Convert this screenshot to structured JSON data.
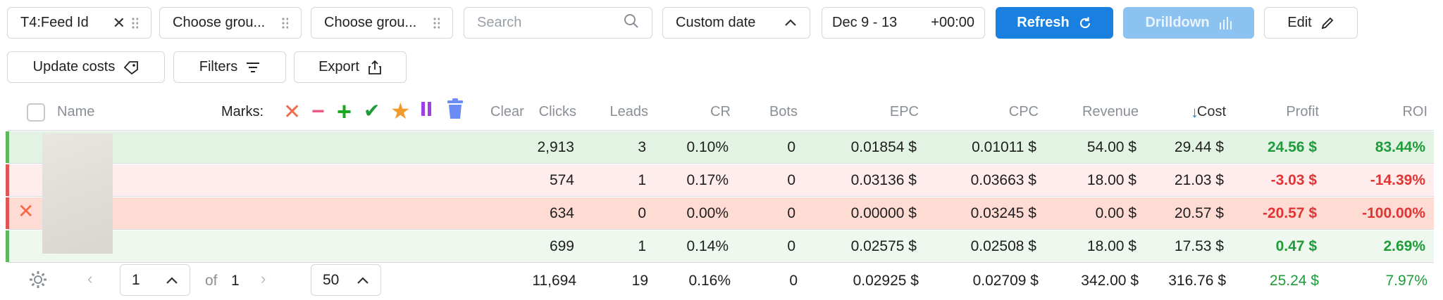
{
  "toolbar": {
    "group1": "T4:Feed Id",
    "group2": "Choose grou...",
    "group3": "Choose grou...",
    "search_placeholder": "Search",
    "date_mode": "Custom date",
    "date_range": "Dec 9 - 13",
    "timezone": "+00:00",
    "refresh": "Refresh",
    "drilldown": "Drilldown",
    "edit": "Edit",
    "update_costs": "Update costs",
    "filters": "Filters",
    "export": "Export"
  },
  "table": {
    "headers": {
      "name": "Name",
      "marks": "Marks:",
      "clear": "Clear",
      "clicks": "Clicks",
      "leads": "Leads",
      "cr": "CR",
      "bots": "Bots",
      "epc": "EPC",
      "cpc": "CPC",
      "revenue": "Revenue",
      "cost": "Cost",
      "profit": "Profit",
      "roi": "ROI"
    },
    "rows": [
      {
        "clicks": "2,913",
        "leads": "3",
        "cr": "0.10%",
        "bots": "0",
        "epc": "0.01854 $",
        "cpc": "0.01011 $",
        "revenue": "54.00 $",
        "cost": "29.44 $",
        "profit": "24.56 $",
        "roi": "83.44%"
      },
      {
        "clicks": "574",
        "leads": "1",
        "cr": "0.17%",
        "bots": "0",
        "epc": "0.03136 $",
        "cpc": "0.03663 $",
        "revenue": "18.00 $",
        "cost": "21.03 $",
        "profit": "-3.03 $",
        "roi": "-14.39%"
      },
      {
        "clicks": "634",
        "leads": "0",
        "cr": "0.00%",
        "bots": "0",
        "epc": "0.00000 $",
        "cpc": "0.03245 $",
        "revenue": "0.00 $",
        "cost": "20.57 $",
        "profit": "-20.57 $",
        "roi": "-100.00%"
      },
      {
        "clicks": "699",
        "leads": "1",
        "cr": "0.14%",
        "bots": "0",
        "epc": "0.02575 $",
        "cpc": "0.02508 $",
        "revenue": "18.00 $",
        "cost": "17.53 $",
        "profit": "0.47 $",
        "roi": "2.69%"
      }
    ],
    "totals": {
      "clicks": "11,694",
      "leads": "19",
      "cr": "0.16%",
      "bots": "0",
      "epc": "0.02925 $",
      "cpc": "0.02709 $",
      "revenue": "342.00 $",
      "cost": "316.76 $",
      "profit": "25.24 $",
      "roi": "7.97%"
    }
  },
  "pagination": {
    "page": "1",
    "of_label": "of",
    "total_pages": "1",
    "page_size": "50"
  },
  "colors": {
    "primary": "#1a80e0",
    "positive": "#1e9c3a",
    "negative": "#e03535"
  }
}
